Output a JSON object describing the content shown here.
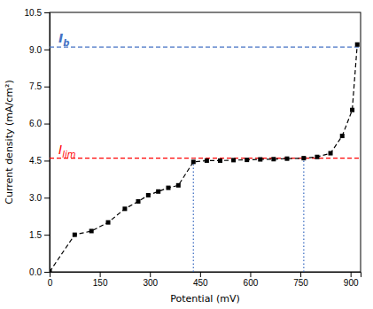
{
  "chart_data": {
    "type": "line",
    "x": [
      0,
      75,
      125,
      175,
      225,
      265,
      295,
      325,
      355,
      385,
      430,
      470,
      510,
      550,
      590,
      630,
      670,
      710,
      760,
      800,
      840,
      875,
      905,
      920
    ],
    "values": [
      0.0,
      1.5,
      1.65,
      2.0,
      2.55,
      2.85,
      3.1,
      3.25,
      3.4,
      3.5,
      4.45,
      4.5,
      4.5,
      4.52,
      4.53,
      4.55,
      4.56,
      4.58,
      4.6,
      4.65,
      4.8,
      5.5,
      6.55,
      9.2
    ],
    "color": "#000000",
    "marker": "square",
    "line_style": "dashed",
    "xlabel": "Potential (mV)",
    "ylabel": "Current density (mA/cm²)",
    "xlim": [
      0,
      930
    ],
    "ylim": [
      0,
      10.5
    ],
    "xticks": [
      0,
      150,
      300,
      450,
      600,
      750,
      900
    ],
    "yticks": [
      {
        "value": 0.0,
        "label": "0.0"
      },
      1.5,
      {
        "value": 3.0,
        "label": "3.0"
      },
      4.5,
      {
        "value": 6.0,
        "label": "6.0"
      },
      7.5,
      {
        "value": 9.0,
        "label": "9.0"
      },
      10.5
    ],
    "grid": false,
    "reference_lines": [
      {
        "y": 9.1,
        "label": "Ib",
        "color": "#4472C4",
        "line_style": "dashed"
      },
      {
        "y": 4.6,
        "label": "Ilim",
        "color": "#FF0000",
        "line_style": "dashed"
      }
    ],
    "vlines": [
      {
        "x": 430,
        "to": 4.6,
        "color": "#4472C4",
        "line_style": "dotted"
      },
      {
        "x": 760,
        "to": 4.6,
        "color": "#4472C4",
        "line_style": "dotted"
      }
    ]
  }
}
